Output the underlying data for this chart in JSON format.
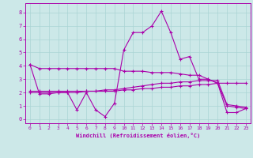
{
  "title": "",
  "xlabel": "Windchill (Refroidissement éolien,°C)",
  "ylabel": "",
  "background_color": "#cce8e8",
  "line_color": "#aa00aa",
  "xlim": [
    -0.5,
    23.5
  ],
  "ylim": [
    -0.3,
    8.7
  ],
  "xticks": [
    0,
    1,
    2,
    3,
    4,
    5,
    6,
    7,
    8,
    9,
    10,
    11,
    12,
    13,
    14,
    15,
    16,
    17,
    18,
    19,
    20,
    21,
    22,
    23
  ],
  "yticks": [
    0,
    1,
    2,
    3,
    4,
    5,
    6,
    7,
    8
  ],
  "grid_color": "#aad4d4",
  "series": [
    {
      "x": [
        0,
        1,
        2,
        3,
        4,
        5,
        6,
        7,
        8,
        9,
        10,
        11,
        12,
        13,
        14,
        15,
        16,
        17,
        18,
        19,
        20,
        21,
        22,
        23
      ],
      "y": [
        4.1,
        3.8,
        3.8,
        3.8,
        3.8,
        3.8,
        3.8,
        3.8,
        3.8,
        3.8,
        3.6,
        3.6,
        3.6,
        3.5,
        3.5,
        3.5,
        3.4,
        3.3,
        3.3,
        3.0,
        2.7,
        2.7,
        2.7,
        2.7
      ]
    },
    {
      "x": [
        0,
        1,
        2,
        3,
        4,
        5,
        6,
        7,
        8,
        9,
        10,
        11,
        12,
        13,
        14,
        15,
        16,
        17,
        18,
        19,
        20,
        21,
        22,
        23
      ],
      "y": [
        4.1,
        1.9,
        1.9,
        2.0,
        2.0,
        0.7,
        2.0,
        0.7,
        0.2,
        1.2,
        5.2,
        6.5,
        6.5,
        7.0,
        8.1,
        6.5,
        4.5,
        4.7,
        3.0,
        3.0,
        2.7,
        0.5,
        0.5,
        0.8
      ]
    },
    {
      "x": [
        0,
        1,
        2,
        3,
        4,
        5,
        6,
        7,
        8,
        9,
        10,
        11,
        12,
        13,
        14,
        15,
        16,
        17,
        18,
        19,
        20,
        21,
        22,
        23
      ],
      "y": [
        2.0,
        2.0,
        2.0,
        2.0,
        2.0,
        2.0,
        2.1,
        2.1,
        2.1,
        2.1,
        2.2,
        2.2,
        2.3,
        2.3,
        2.4,
        2.4,
        2.5,
        2.5,
        2.6,
        2.6,
        2.7,
        1.0,
        0.9,
        0.8
      ]
    },
    {
      "x": [
        0,
        1,
        2,
        3,
        4,
        5,
        6,
        7,
        8,
        9,
        10,
        11,
        12,
        13,
        14,
        15,
        16,
        17,
        18,
        19,
        20,
        21,
        22,
        23
      ],
      "y": [
        2.1,
        2.1,
        2.1,
        2.1,
        2.1,
        2.1,
        2.1,
        2.1,
        2.2,
        2.2,
        2.3,
        2.4,
        2.5,
        2.6,
        2.7,
        2.7,
        2.8,
        2.8,
        2.9,
        2.9,
        2.9,
        1.1,
        1.0,
        0.9
      ]
    }
  ]
}
